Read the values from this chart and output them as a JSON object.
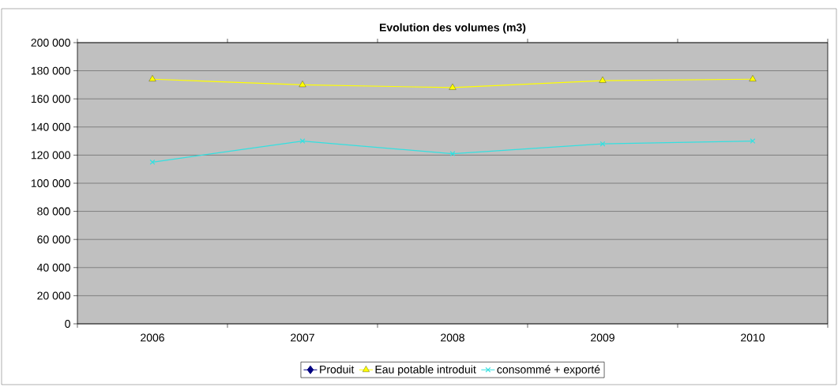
{
  "chart_data": {
    "type": "line",
    "title": "Evolution des volumes (m3)",
    "categories": [
      "2006",
      "2007",
      "2008",
      "2009",
      "2010"
    ],
    "series": [
      {
        "name": "Produit",
        "color": "#000080",
        "marker": "diamond",
        "values": [
          null,
          null,
          null,
          null,
          null
        ]
      },
      {
        "name": "Eau potable introduit",
        "color": "#ffff00",
        "marker": "triangle",
        "values": [
          174000,
          170000,
          168000,
          173000,
          174000
        ]
      },
      {
        "name": "consommé + exporté",
        "color": "#33e0e0",
        "marker": "cross",
        "values": [
          115000,
          130000,
          121000,
          128000,
          130000
        ]
      }
    ],
    "ylim": [
      0,
      200000
    ],
    "yticks": [
      {
        "value": 0,
        "label": "0"
      },
      {
        "value": 20000,
        "label": "20 000"
      },
      {
        "value": 40000,
        "label": "40 000"
      },
      {
        "value": 60000,
        "label": "60 000"
      },
      {
        "value": 80000,
        "label": "80 000"
      },
      {
        "value": 100000,
        "label": "100 000"
      },
      {
        "value": 120000,
        "label": "120 000"
      },
      {
        "value": 140000,
        "label": "140 000"
      },
      {
        "value": 160000,
        "label": "160 000"
      },
      {
        "value": 180000,
        "label": "180 000"
      },
      {
        "value": 200000,
        "label": "200 000"
      }
    ],
    "grid": "y",
    "legend": "bottom",
    "line_style": "solid"
  }
}
